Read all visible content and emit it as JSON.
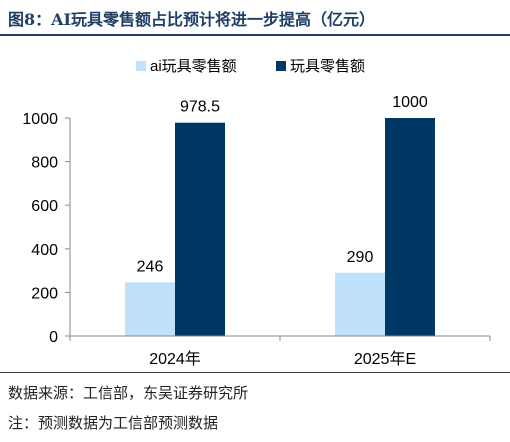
{
  "header": {
    "title": "图8：AI玩具零售额占比预计将进一步提高（亿元）"
  },
  "chart_data": {
    "type": "bar",
    "categories": [
      "2024年",
      "2025年E"
    ],
    "series": [
      {
        "name": "ai玩具零售额",
        "values": [
          246,
          290
        ],
        "color": "#bfe1fb"
      },
      {
        "name": "玩具零售额",
        "values": [
          978.5,
          1000
        ],
        "color": "#003865"
      }
    ],
    "data_labels": [
      [
        "246",
        "290"
      ],
      [
        "978.5",
        "1000"
      ]
    ],
    "ylim": [
      0,
      1000
    ],
    "yticks": [
      0,
      200,
      400,
      600,
      800,
      1000
    ],
    "legend_position": "top",
    "grid": false,
    "xlabel": "",
    "ylabel": ""
  },
  "footer": {
    "source": "数据来源：工信部，东吴证券研究所",
    "note": "注：预测数据为工信部预测数据"
  }
}
